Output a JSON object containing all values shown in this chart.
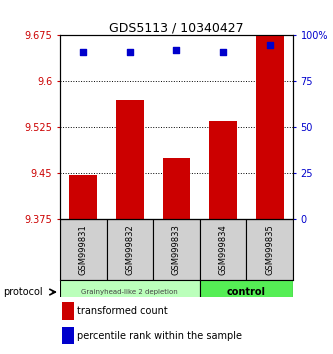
{
  "title": "GDS5113 / 10340427",
  "samples": [
    "GSM999831",
    "GSM999832",
    "GSM999833",
    "GSM999834",
    "GSM999835"
  ],
  "transformed_counts": [
    9.448,
    9.57,
    9.475,
    9.535,
    9.675
  ],
  "percentile_ranks": [
    91,
    91,
    92,
    91,
    95
  ],
  "ylim_left": [
    9.375,
    9.675
  ],
  "ylim_right": [
    0,
    100
  ],
  "yticks_left": [
    9.375,
    9.45,
    9.525,
    9.6,
    9.675
  ],
  "yticks_right": [
    0,
    25,
    50,
    75,
    100
  ],
  "ytick_labels_left": [
    "9.375",
    "9.45",
    "9.525",
    "9.6",
    "9.675"
  ],
  "ytick_labels_right": [
    "0",
    "25",
    "50",
    "75",
    "100%"
  ],
  "bar_color": "#cc0000",
  "dot_color": "#0000cc",
  "group1_indices": [
    0,
    1,
    2
  ],
  "group2_indices": [
    3,
    4
  ],
  "group1_label": "Grainyhead-like 2 depletion",
  "group2_label": "control",
  "group1_color": "#bbffbb",
  "group2_color": "#55ee55",
  "protocol_label": "protocol",
  "legend_bar_label": "transformed count",
  "legend_dot_label": "percentile rank within the sample",
  "background_color": "#ffffff",
  "grid_color": "#000000"
}
